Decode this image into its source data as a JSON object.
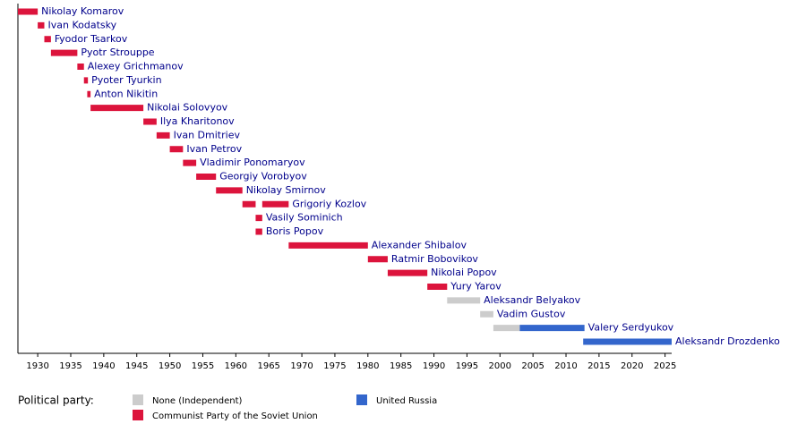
{
  "chart_data": {
    "type": "timeline",
    "legend_title": "Political party:",
    "series": [
      {
        "name": "None (Independent)",
        "color": "#cccccc"
      },
      {
        "name": "Communist Party of the Soviet Union",
        "color": "#dc143c"
      },
      {
        "name": "United Russia",
        "color": "#3366cc"
      }
    ],
    "rows": [
      {
        "name": "Nikolay Komarov",
        "bars": [
          {
            "start": 1927,
            "end": 1930,
            "series": 1
          }
        ]
      },
      {
        "name": "Ivan Kodatsky",
        "bars": [
          {
            "start": 1930,
            "end": 1931,
            "series": 1
          }
        ]
      },
      {
        "name": "Fyodor Tsarkov",
        "bars": [
          {
            "start": 1931,
            "end": 1932,
            "series": 1
          }
        ]
      },
      {
        "name": "Pyotr Strouppe",
        "bars": [
          {
            "start": 1932,
            "end": 1936,
            "series": 1
          }
        ]
      },
      {
        "name": "Alexey Grichmanov",
        "bars": [
          {
            "start": 1936,
            "end": 1937,
            "series": 1
          }
        ]
      },
      {
        "name": "Pyoter Tyurkin",
        "bars": [
          {
            "start": 1937,
            "end": 1937.6,
            "series": 1
          }
        ]
      },
      {
        "name": "Anton Nikitin",
        "bars": [
          {
            "start": 1937.5,
            "end": 1938,
            "series": 1
          }
        ]
      },
      {
        "name": "Nikolai Solovyov",
        "bars": [
          {
            "start": 1938,
            "end": 1946,
            "series": 1
          }
        ]
      },
      {
        "name": "Ilya Kharitonov",
        "bars": [
          {
            "start": 1946,
            "end": 1948,
            "series": 1
          }
        ]
      },
      {
        "name": "Ivan Dmitriev",
        "bars": [
          {
            "start": 1948,
            "end": 1950,
            "series": 1
          }
        ]
      },
      {
        "name": "Ivan Petrov",
        "bars": [
          {
            "start": 1950,
            "end": 1952,
            "series": 1
          }
        ]
      },
      {
        "name": "Vladimir Ponomaryov",
        "bars": [
          {
            "start": 1952,
            "end": 1954,
            "series": 1
          }
        ]
      },
      {
        "name": "Georgiy Vorobyov",
        "bars": [
          {
            "start": 1954,
            "end": 1957,
            "series": 1
          }
        ]
      },
      {
        "name": "Nikolay Smirnov",
        "bars": [
          {
            "start": 1957,
            "end": 1961,
            "series": 1
          }
        ]
      },
      {
        "name": "Grigoriy Kozlov",
        "bars": [
          {
            "start": 1961,
            "end": 1963,
            "series": 1
          },
          {
            "start": 1964,
            "end": 1968,
            "series": 1
          }
        ]
      },
      {
        "name": "Vasily Sominich",
        "bars": [
          {
            "start": 1963,
            "end": 1964,
            "series": 1
          }
        ]
      },
      {
        "name": "Boris Popov",
        "bars": [
          {
            "start": 1963,
            "end": 1964,
            "series": 1
          }
        ]
      },
      {
        "name": "Alexander Shibalov",
        "bars": [
          {
            "start": 1968,
            "end": 1980,
            "series": 1
          }
        ]
      },
      {
        "name": "Ratmir Bobovikov",
        "bars": [
          {
            "start": 1980,
            "end": 1983,
            "series": 1
          }
        ]
      },
      {
        "name": "Nikolai Popov",
        "bars": [
          {
            "start": 1983,
            "end": 1989,
            "series": 1
          }
        ]
      },
      {
        "name": "Yury Yarov",
        "bars": [
          {
            "start": 1989,
            "end": 1992,
            "series": 1
          }
        ]
      },
      {
        "name": "Aleksandr Belyakov",
        "bars": [
          {
            "start": 1992,
            "end": 1997,
            "series": 0
          }
        ]
      },
      {
        "name": "Vadim Gustov",
        "bars": [
          {
            "start": 1997,
            "end": 1999,
            "series": 0
          }
        ]
      },
      {
        "name": "Valery Serdyukov",
        "bars": [
          {
            "start": 1999,
            "end": 2003,
            "series": 0
          },
          {
            "start": 2003,
            "end": 2012.8,
            "series": 2
          }
        ]
      },
      {
        "name": "Aleksandr Drozdenko",
        "bars": [
          {
            "start": 2012.6,
            "end": 2026,
            "series": 2
          }
        ]
      }
    ],
    "xlim": [
      1927,
      2026
    ],
    "xticks": [
      1930,
      1935,
      1940,
      1945,
      1950,
      1955,
      1960,
      1965,
      1970,
      1975,
      1980,
      1985,
      1990,
      1995,
      2000,
      2005,
      2010,
      2015,
      2020,
      2025
    ]
  }
}
